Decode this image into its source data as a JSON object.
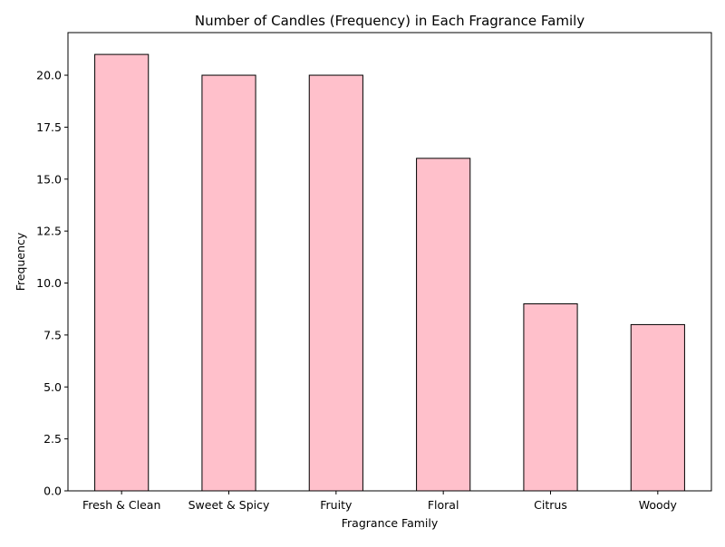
{
  "chart_data": {
    "type": "bar",
    "title": "Number of Candles (Frequency) in Each Fragrance Family",
    "xlabel": "Fragrance Family",
    "ylabel": "Frequency",
    "categories": [
      "Fresh & Clean",
      "Sweet & Spicy",
      "Fruity",
      "Floral",
      "Citrus",
      "Woody"
    ],
    "values": [
      21,
      20,
      20,
      16,
      9,
      8
    ],
    "ylim": [
      0,
      22.05
    ],
    "yticks": [
      "0.0",
      "2.5",
      "5.0",
      "7.5",
      "10.0",
      "12.5",
      "15.0",
      "17.5",
      "20.0"
    ],
    "grid": false,
    "legend": "none",
    "bar_color": "#ffc0cb",
    "bar_edge_color": "#000000"
  }
}
